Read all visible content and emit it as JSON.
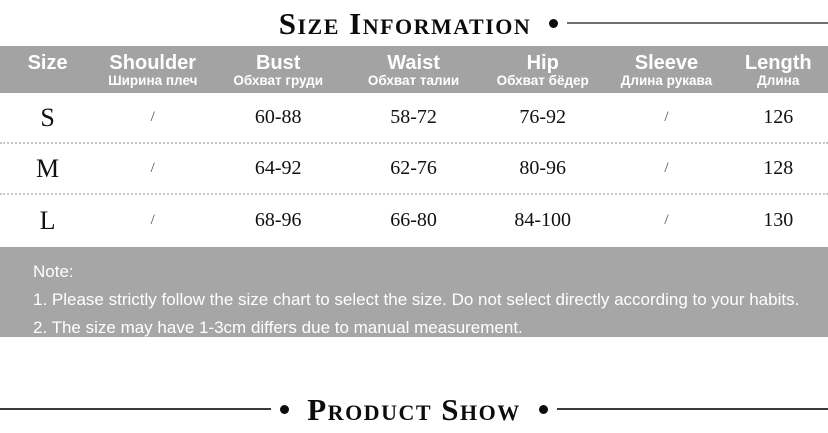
{
  "sections": {
    "size_information": "Size Information",
    "product_show": "Product Show"
  },
  "size_table": {
    "columns": [
      {
        "en": "Size",
        "ru": ""
      },
      {
        "en": "Shoulder",
        "ru": "Ширина плеч"
      },
      {
        "en": "Bust",
        "ru": "Обхват груди"
      },
      {
        "en": "Waist",
        "ru": "Обхват талии"
      },
      {
        "en": "Hip",
        "ru": "Обхват бёдер"
      },
      {
        "en": "Sleeve",
        "ru": "Длина рукава"
      },
      {
        "en": "Length",
        "ru": "Длина"
      }
    ],
    "rows": [
      {
        "size": "S",
        "shoulder": "/",
        "bust": "60-88",
        "waist": "58-72",
        "hip": "76-92",
        "sleeve": "/",
        "length": "126"
      },
      {
        "size": "M",
        "shoulder": "/",
        "bust": "64-92",
        "waist": "62-76",
        "hip": "80-96",
        "sleeve": "/",
        "length": "128"
      },
      {
        "size": "L",
        "shoulder": "/",
        "bust": "68-96",
        "waist": "66-80",
        "hip": "84-100",
        "sleeve": "/",
        "length": "130"
      }
    ]
  },
  "note": {
    "title": "Note:",
    "lines": [
      "1. Please strictly follow the size chart to select the size. Do not select directly according to your habits.",
      "2. The size may have 1-3cm differs due to manual measurement."
    ]
  },
  "colors": {
    "header_bg": "#a3a3a3",
    "note_bg": "#a6a6a6",
    "header_text": "#ffffff",
    "title_text": "#0c0c0c"
  }
}
